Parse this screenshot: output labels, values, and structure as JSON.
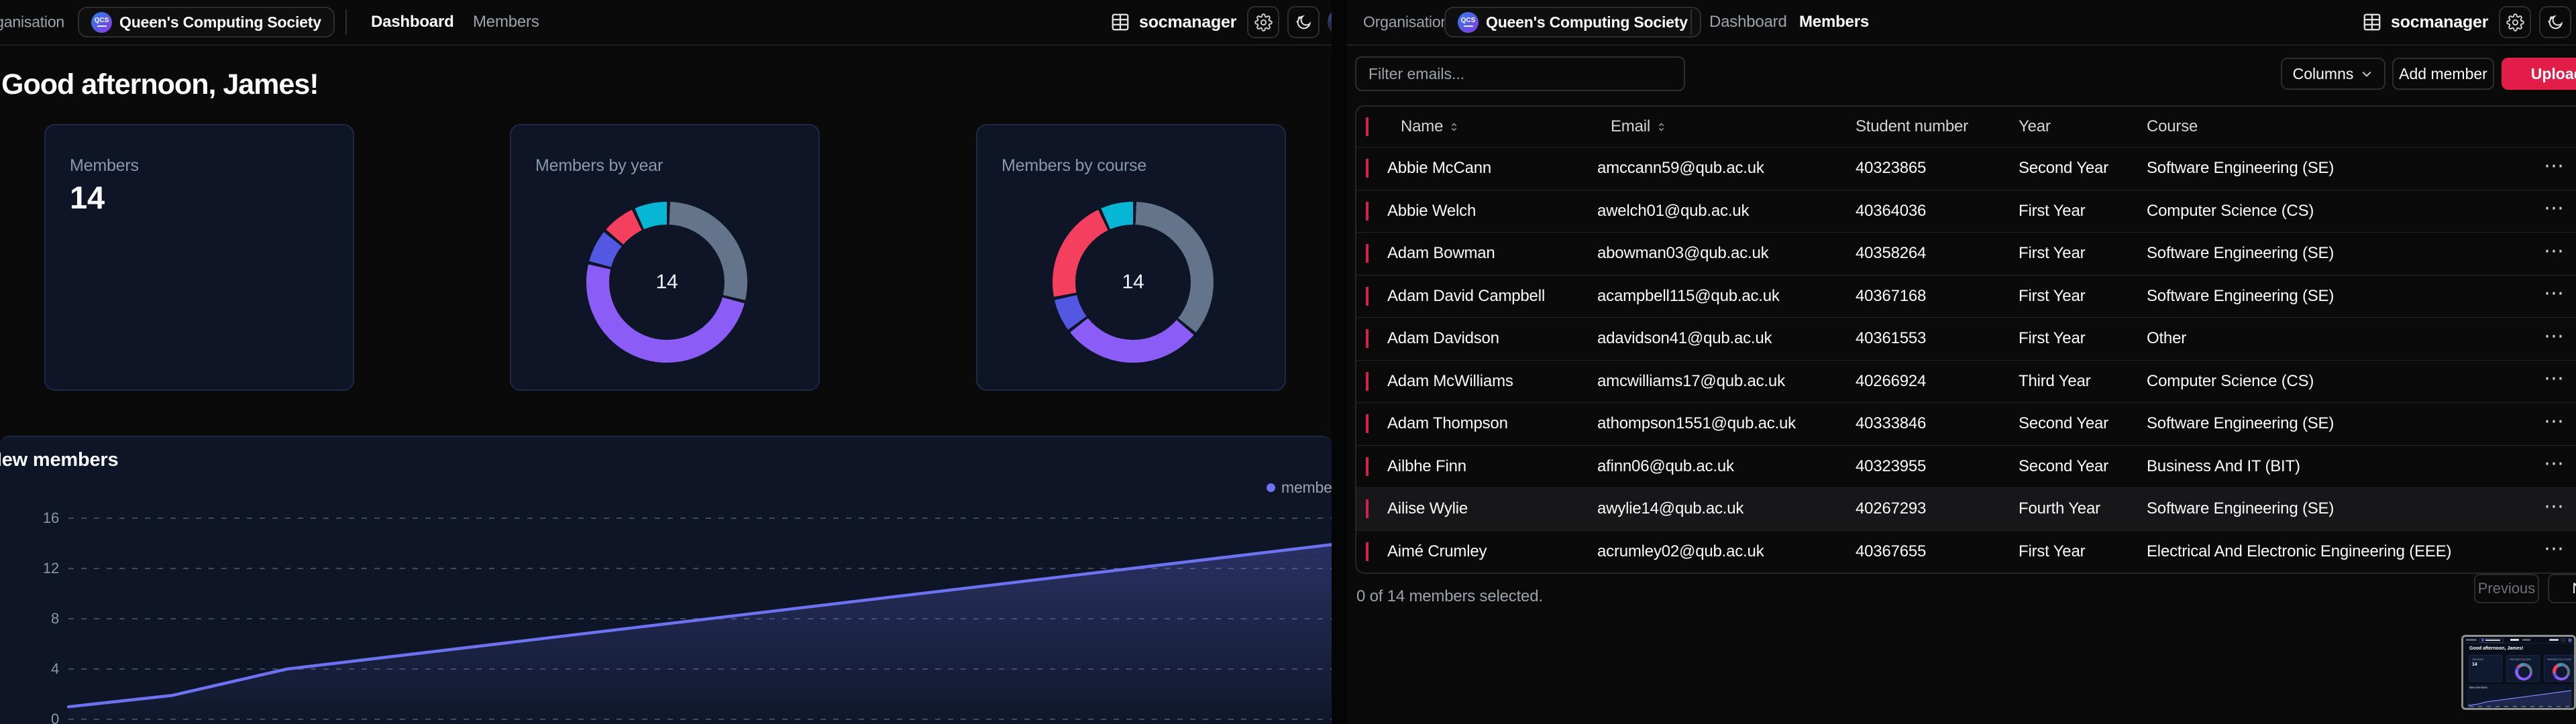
{
  "icons": {
    "ellipsis": "⋯"
  },
  "colors": {
    "accent_rose": "#e11d48",
    "checkbox_rose": "#d6204f",
    "line": "#6d72f0",
    "slate": "#64748b",
    "violet": "#8b5cf6",
    "indigo": "#5358e3",
    "rose": "#f43f5e",
    "cyan": "#06b6d4",
    "card_bg": "#0d1526"
  },
  "left_window": {
    "nav": {
      "org_label": "Organisation",
      "org_name": "Queen's Computing Society",
      "logo_text": "QCS",
      "tabs": [
        {
          "label": "Dashboard",
          "active": true
        },
        {
          "label": "Members",
          "active": false
        }
      ],
      "username": "socmanager"
    },
    "greeting": "Good afternoon, James!",
    "stat_card": {
      "title": "Members",
      "value": "14"
    },
    "year_card_title": "Members by year",
    "course_card_title": "Members by course",
    "donut_center": "14",
    "chart_header": {
      "title": "New members",
      "legend_label": "members"
    }
  },
  "right_window": {
    "nav": {
      "org_label": "Organisation",
      "org_name": "Queen's Computing Society",
      "logo_text": "QCS",
      "tabs": [
        {
          "label": "Dashboard",
          "active": false
        },
        {
          "label": "Members",
          "active": true
        }
      ],
      "username": "socmanager"
    },
    "toolbar": {
      "filter_placeholder": "Filter emails...",
      "columns_label": "Columns",
      "add_member_label": "Add member",
      "upload_file_label": "Upload file"
    },
    "table": {
      "headers": {
        "name": "Name",
        "email": "Email",
        "student_number": "Student number",
        "year": "Year",
        "course": "Course"
      },
      "rows": [
        {
          "name": "Abbie McCann",
          "email": "amccann59@qub.ac.uk",
          "student_number": "40323865",
          "year": "Second Year",
          "course": "Software Engineering (SE)",
          "highlighted": false
        },
        {
          "name": "Abbie Welch",
          "email": "awelch01@qub.ac.uk",
          "student_number": "40364036",
          "year": "First Year",
          "course": "Computer Science (CS)",
          "highlighted": false
        },
        {
          "name": "Adam Bowman",
          "email": "abowman03@qub.ac.uk",
          "student_number": "40358264",
          "year": "First Year",
          "course": "Software Engineering (SE)",
          "highlighted": false
        },
        {
          "name": "Adam David Campbell",
          "email": "acampbell115@qub.ac.uk",
          "student_number": "40367168",
          "year": "First Year",
          "course": "Software Engineering (SE)",
          "highlighted": false
        },
        {
          "name": "Adam Davidson",
          "email": "adavidson41@qub.ac.uk",
          "student_number": "40361553",
          "year": "First Year",
          "course": "Other",
          "highlighted": false
        },
        {
          "name": "Adam McWilliams",
          "email": "amcwilliams17@qub.ac.uk",
          "student_number": "40266924",
          "year": "Third Year",
          "course": "Computer Science (CS)",
          "highlighted": false
        },
        {
          "name": "Adam Thompson",
          "email": "athompson1551@qub.ac.uk",
          "student_number": "40333846",
          "year": "Second Year",
          "course": "Software Engineering (SE)",
          "highlighted": false
        },
        {
          "name": "Ailbhe Finn",
          "email": "afinn06@qub.ac.uk",
          "student_number": "40323955",
          "year": "Second Year",
          "course": "Business And IT (BIT)",
          "highlighted": false
        },
        {
          "name": "Ailise Wylie",
          "email": "awylie14@qub.ac.uk",
          "student_number": "40267293",
          "year": "Fourth Year",
          "course": "Software Engineering (SE)",
          "highlighted": true
        },
        {
          "name": "Aimé Crumley",
          "email": "acrumley02@qub.ac.uk",
          "student_number": "40367655",
          "year": "First Year",
          "course": "Electrical And Electronic Engineering (EEE)",
          "highlighted": false
        }
      ]
    },
    "footer": {
      "selection_text": "0 of 14 members selected.",
      "previous_label": "Previous",
      "next_label": "Next"
    }
  },
  "chart_data": [
    {
      "type": "pie",
      "donut": true,
      "title": "Members by year",
      "center_label": "14",
      "total": 14,
      "legend": "none",
      "segments": [
        {
          "color": "#64748b",
          "value": 4
        },
        {
          "color": "#8b5cf6",
          "value": 7
        },
        {
          "color": "#5358e3",
          "value": 1
        },
        {
          "color": "#f43f5e",
          "value": 1
        },
        {
          "color": "#06b6d4",
          "value": 1
        }
      ]
    },
    {
      "type": "pie",
      "donut": true,
      "title": "Members by course",
      "center_label": "14",
      "total": 14,
      "legend": "none",
      "segments": [
        {
          "color": "#64748b",
          "value": 5
        },
        {
          "color": "#8b5cf6",
          "value": 4
        },
        {
          "color": "#5358e3",
          "value": 1
        },
        {
          "color": "#f43f5e",
          "value": 3
        },
        {
          "color": "#06b6d4",
          "value": 1
        }
      ]
    },
    {
      "type": "area",
      "title": "New members",
      "ylim": [
        0,
        16
      ],
      "yticks": [
        16,
        12,
        8,
        4,
        0
      ],
      "grid": "dashed-horizontal",
      "legend_position": "top-right",
      "series": [
        {
          "name": "members",
          "color": "#6d72f0",
          "points_pct_value": [
            [
              0,
              1
            ],
            [
              8.2,
              1.9
            ],
            [
              12.1,
              2.8
            ],
            [
              17.3,
              4
            ],
            [
              100,
              13.9
            ]
          ]
        }
      ]
    }
  ]
}
